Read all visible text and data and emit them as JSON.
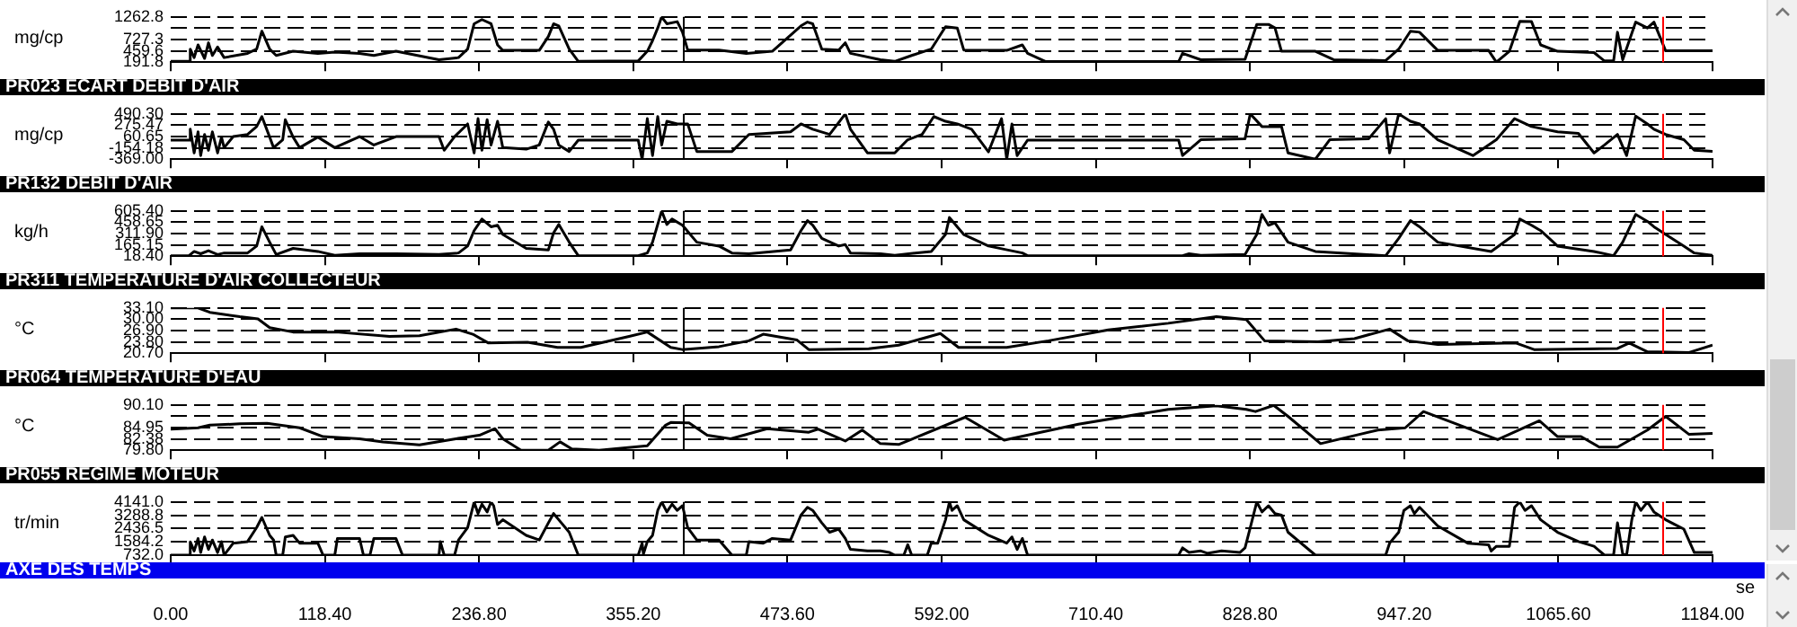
{
  "chart_data": [
    {
      "type": "line",
      "ylabel": "mg/cp",
      "color": "#000000",
      "marker": "none",
      "grid": "y",
      "tick_labels": "y",
      "xlim": [
        0,
        1184
      ],
      "xticks": [
        {
          "value": 0,
          "label": null
        },
        {
          "value": 118.4,
          "label": null
        },
        {
          "value": 236.8,
          "label": null
        },
        {
          "value": 355.2,
          "label": null
        },
        {
          "value": 473.6,
          "label": null
        },
        {
          "value": 592,
          "label": null
        },
        {
          "value": 710.4,
          "label": null
        },
        {
          "value": 828.8,
          "label": null
        },
        {
          "value": 947.2,
          "label": null
        },
        {
          "value": 1065.6,
          "label": null
        },
        {
          "value": 1184,
          "label": null
        }
      ],
      "ylim": [
        191.8,
        1262.8
      ],
      "yticks": [
        191.8,
        459.6,
        727.3,
        {
          "value": 995.05,
          "label": null
        },
        1262.8
      ],
      "ref_lines": [
        {
          "axis": "x",
          "value": 393,
          "color": "#000000"
        },
        {
          "axis": "x",
          "value": 1145,
          "color": "#ff0000"
        }
      ],
      "x": [
        0,
        14,
        15,
        18,
        21,
        26,
        29,
        32,
        36,
        41,
        59,
        66,
        70,
        76,
        81,
        94,
        113,
        126,
        145,
        156,
        173,
        206,
        221,
        228,
        233,
        239,
        246,
        251,
        255,
        283,
        290,
        294,
        298,
        306,
        313,
        359,
        366,
        370,
        374,
        377,
        381,
        389,
        393,
        397,
        421,
        442,
        462,
        484,
        489,
        493,
        500,
        513,
        518,
        522,
        545,
        556,
        569,
        584,
        595,
        604,
        609,
        642,
        654,
        658,
        672,
        774,
        777,
        791,
        825,
        834,
        843,
        848,
        853,
        879,
        893,
        933,
        943,
        952,
        959,
        973,
        1012,
        1018,
        1028,
        1036,
        1045,
        1052,
        1065,
        1093,
        1101,
        1108,
        1111,
        1115,
        1125,
        1134,
        1139,
        1148,
        1184
      ],
      "values": [
        210,
        210,
        500,
        300,
        600,
        280,
        650,
        350,
        550,
        300,
        400,
        500,
        925,
        500,
        350,
        450,
        400,
        430,
        400,
        350,
        450,
        250,
        300,
        500,
        1100,
        1200,
        1100,
        600,
        470,
        470,
        800,
        1100,
        1050,
        500,
        210,
        220,
        450,
        700,
        1000,
        1262,
        1100,
        1150,
        900,
        480,
        480,
        400,
        450,
        1050,
        1140,
        1100,
        500,
        480,
        650,
        400,
        250,
        210,
        350,
        500,
        1030,
        1000,
        480,
        470,
        600,
        400,
        205,
        205,
        400,
        250,
        260,
        1085,
        1085,
        1000,
        450,
        450,
        250,
        230,
        500,
        925,
        900,
        470,
        470,
        192,
        450,
        1160,
        1150,
        600,
        450,
        420,
        220,
        220,
        900,
        250,
        1140,
        1000,
        1140,
        460,
        460
      ]
    },
    {
      "type": "line",
      "title": "PR023  ECART DEBIT D'AIR",
      "ylabel": "mg/cp",
      "color": "#000000",
      "marker": "none",
      "grid": "y",
      "tick_labels": "y",
      "xlim": [
        0,
        1184
      ],
      "xticks": [
        {
          "value": 0,
          "label": null
        },
        {
          "value": 118.4,
          "label": null
        },
        {
          "value": 236.8,
          "label": null
        },
        {
          "value": 355.2,
          "label": null
        },
        {
          "value": 473.6,
          "label": null
        },
        {
          "value": 592,
          "label": null
        },
        {
          "value": 710.4,
          "label": null
        },
        {
          "value": 828.8,
          "label": null
        },
        {
          "value": 947.2,
          "label": null
        },
        {
          "value": 1065.6,
          "label": null
        },
        {
          "value": 1184,
          "label": null
        }
      ],
      "ylim": [
        -369,
        490.3
      ],
      "yticks": [
        {
          "value": -369,
          "label": "-369.00"
        },
        -154.18,
        60.65,
        275.47,
        {
          "value": 490.3,
          "label": "490.30"
        }
      ],
      "ref_lines": [
        {
          "axis": "x",
          "value": 393,
          "color": "#000000"
        },
        {
          "axis": "x",
          "value": 1145,
          "color": "#ff0000"
        }
      ],
      "x": [
        0,
        14,
        15,
        18,
        21,
        23,
        26,
        29,
        32,
        36,
        39,
        41,
        48,
        59,
        66,
        70,
        76,
        79,
        86,
        88,
        94,
        99,
        113,
        126,
        145,
        156,
        173,
        206,
        210,
        218,
        228,
        233,
        236,
        239,
        243,
        246,
        251,
        255,
        273,
        283,
        290,
        294,
        298,
        306,
        313,
        359,
        362,
        366,
        370,
        374,
        377,
        381,
        389,
        397,
        404,
        431,
        444,
        476,
        484,
        493,
        506,
        518,
        522,
        535,
        556,
        566,
        577,
        586,
        595,
        604,
        615,
        628,
        638,
        642,
        646,
        650,
        658,
        774,
        777,
        791,
        825,
        829,
        838,
        853,
        858,
        879,
        890,
        920,
        933,
        936,
        943,
        952,
        959,
        973,
        1000,
        1018,
        1032,
        1045,
        1065,
        1081,
        1093,
        1101,
        1111,
        1118,
        1125,
        1134,
        1139,
        1148,
        1162,
        1170,
        1184
      ],
      "values": [
        -8,
        -8,
        200,
        -250,
        150,
        -300,
        100,
        -200,
        150,
        -250,
        50,
        -150,
        60,
        100,
        250,
        439,
        50,
        -150,
        0,
        380,
        50,
        -150,
        50,
        -150,
        60,
        -100,
        60,
        60,
        -200,
        60,
        300,
        -250,
        400,
        -200,
        380,
        -100,
        350,
        -150,
        -180,
        -100,
        336,
        200,
        -100,
        -223,
        -8,
        -8,
        -369,
        400,
        -300,
        440,
        -100,
        350,
        300,
        300,
        -223,
        -223,
        100,
        150,
        300,
        200,
        100,
        490,
        200,
        -250,
        -250,
        0,
        100,
        440,
        350,
        300,
        200,
        -230,
        400,
        -369,
        300,
        -300,
        -8,
        -8,
        -300,
        0,
        20,
        490,
        250,
        250,
        -250,
        -369,
        0,
        20,
        400,
        -250,
        490,
        350,
        300,
        0,
        -300,
        0,
        400,
        250,
        150,
        120,
        -250,
        -100,
        100,
        -300,
        450,
        300,
        200,
        100,
        0,
        -200,
        -220
      ]
    },
    {
      "type": "line",
      "title": "PR132  DEBIT D'AIR",
      "ylabel": "kg/h",
      "color": "#000000",
      "marker": "none",
      "grid": "y",
      "tick_labels": "y",
      "xlim": [
        0,
        1184
      ],
      "xticks": [
        {
          "value": 0,
          "label": null
        },
        {
          "value": 118.4,
          "label": null
        },
        {
          "value": 236.8,
          "label": null
        },
        {
          "value": 355.2,
          "label": null
        },
        {
          "value": 473.6,
          "label": null
        },
        {
          "value": 592,
          "label": null
        },
        {
          "value": 710.4,
          "label": null
        },
        {
          "value": 828.8,
          "label": null
        },
        {
          "value": 947.2,
          "label": null
        },
        {
          "value": 1065.6,
          "label": null
        },
        {
          "value": 1184,
          "label": null
        }
      ],
      "ylim": [
        18.4,
        605.4
      ],
      "yticks": [
        {
          "value": 18.4,
          "label": "18.40"
        },
        165.15,
        {
          "value": 311.9,
          "label": "311.90"
        },
        458.65,
        {
          "value": 605.4,
          "label": "605.40"
        }
      ],
      "ref_lines": [
        {
          "axis": "x",
          "value": 393,
          "color": "#000000"
        },
        {
          "axis": "x",
          "value": 1145,
          "color": "#ff0000"
        }
      ],
      "x": [
        0,
        14,
        18,
        23,
        29,
        36,
        41,
        59,
        66,
        70,
        76,
        81,
        94,
        113,
        126,
        145,
        173,
        206,
        221,
        228,
        233,
        239,
        246,
        251,
        255,
        273,
        290,
        294,
        298,
        306,
        313,
        359,
        366,
        370,
        377,
        381,
        385,
        393,
        404,
        421,
        431,
        444,
        476,
        484,
        489,
        493,
        500,
        513,
        518,
        522,
        545,
        556,
        584,
        595,
        598,
        604,
        609,
        628,
        654,
        658,
        777,
        782,
        791,
        825,
        834,
        838,
        843,
        848,
        858,
        879,
        933,
        943,
        952,
        959,
        973,
        1014,
        1032,
        1036,
        1045,
        1052,
        1065,
        1093,
        1108,
        1115,
        1122,
        1125,
        1134,
        1139,
        1148,
        1162,
        1170,
        1184
      ],
      "values": [
        25,
        25,
        80,
        50,
        90,
        40,
        60,
        60,
        150,
        400,
        200,
        40,
        120,
        80,
        30,
        50,
        50,
        40,
        60,
        150,
        350,
        500,
        400,
        420,
        300,
        120,
        100,
        320,
        430,
        200,
        25,
        25,
        60,
        200,
        605,
        430,
        500,
        420,
        200,
        150,
        60,
        50,
        100,
        350,
        480,
        420,
        250,
        150,
        170,
        60,
        50,
        30,
        80,
        300,
        520,
        400,
        300,
        150,
        60,
        25,
        25,
        50,
        30,
        40,
        300,
        560,
        420,
        450,
        200,
        80,
        25,
        250,
        480,
        400,
        200,
        80,
        300,
        500,
        420,
        350,
        150,
        80,
        25,
        200,
        450,
        560,
        470,
        400,
        300,
        150,
        60,
        30
      ]
    },
    {
      "type": "line",
      "title": "PR311  TEMPERATURE D'AIR COLLECTEUR",
      "ylabel": "°C",
      "color": "#000000",
      "marker": "none",
      "grid": "y",
      "tick_labels": "y",
      "xlim": [
        0,
        1184
      ],
      "xticks": [
        {
          "value": 0,
          "label": null
        },
        {
          "value": 118.4,
          "label": null
        },
        {
          "value": 236.8,
          "label": null
        },
        {
          "value": 355.2,
          "label": null
        },
        {
          "value": 473.6,
          "label": null
        },
        {
          "value": 592,
          "label": null
        },
        {
          "value": 710.4,
          "label": null
        },
        {
          "value": 828.8,
          "label": null
        },
        {
          "value": 947.2,
          "label": null
        },
        {
          "value": 1065.6,
          "label": null
        },
        {
          "value": 1184,
          "label": null
        }
      ],
      "ylim": [
        20.7,
        33.1
      ],
      "yticks": [
        {
          "value": 20.7,
          "label": "20.70"
        },
        {
          "value": 23.8,
          "label": "23.80"
        },
        {
          "value": 26.9,
          "label": "26.90"
        },
        {
          "value": 30,
          "label": "30.00"
        },
        {
          "value": 33.1,
          "label": "33.10"
        }
      ],
      "ref_lines": [
        {
          "axis": "x",
          "value": 393,
          "color": "#000000"
        },
        {
          "axis": "x",
          "value": 1145,
          "color": "#ff0000"
        }
      ],
      "x": [
        0,
        21,
        30,
        53,
        67,
        76,
        94,
        127,
        168,
        191,
        219,
        232,
        244,
        274,
        297,
        315,
        352,
        366,
        384,
        393,
        421,
        444,
        455,
        481,
        490,
        536,
        559,
        591,
        605,
        642,
        674,
        720,
        766,
        803,
        826,
        840,
        881,
        909,
        936,
        950,
        973,
        1033,
        1047,
        1111,
        1120,
        1134,
        1166,
        1184
      ],
      "values": [
        33.1,
        33.1,
        31.9,
        30.7,
        30.1,
        27.7,
        26.5,
        26.5,
        25.3,
        25.5,
        27.3,
        25.9,
        23.5,
        23.7,
        22.3,
        22.3,
        25.3,
        26.5,
        22.3,
        21.7,
        22.5,
        24.1,
        25.9,
        24.3,
        21.7,
        21.9,
        22.9,
        26.1,
        22.3,
        22.3,
        24.1,
        27.1,
        28.9,
        30.7,
        29.9,
        24.1,
        23.8,
        24.7,
        27.3,
        24.1,
        23.1,
        23.5,
        21.7,
        22.0,
        23.5,
        21.1,
        20.9,
        22.9
      ]
    },
    {
      "type": "line",
      "title": "PR064  TEMPERATURE D'EAU",
      "ylabel": "°C",
      "color": "#000000",
      "marker": "none",
      "grid": "y",
      "tick_labels": "y",
      "xlim": [
        0,
        1184
      ],
      "xticks": [
        {
          "value": 0,
          "label": null
        },
        {
          "value": 118.4,
          "label": null
        },
        {
          "value": 236.8,
          "label": null
        },
        {
          "value": 355.2,
          "label": null
        },
        {
          "value": 473.6,
          "label": null
        },
        {
          "value": 592,
          "label": null
        },
        {
          "value": 710.4,
          "label": null
        },
        {
          "value": 828.8,
          "label": null
        },
        {
          "value": 947.2,
          "label": null
        },
        {
          "value": 1065.6,
          "label": null
        },
        {
          "value": 1184,
          "label": null
        }
      ],
      "ylim": [
        79.8,
        90.1
      ],
      "yticks": [
        {
          "value": 79.8,
          "label": "79.80"
        },
        82.38,
        84.95,
        {
          "value": 87.525,
          "label": null
        },
        {
          "value": 90.1,
          "label": "90.10"
        }
      ],
      "ref_lines": [
        {
          "axis": "x",
          "value": 393,
          "color": "#000000"
        },
        {
          "axis": "x",
          "value": 1145,
          "color": "#ff0000"
        }
      ],
      "x": [
        0,
        21,
        30,
        53,
        74,
        99,
        117,
        145,
        163,
        191,
        219,
        237,
        249,
        255,
        269,
        290,
        299,
        308,
        329,
        366,
        380,
        384,
        398,
        412,
        430,
        458,
        490,
        497,
        518,
        531,
        545,
        559,
        610,
        640,
        697,
        766,
        803,
        826,
        833,
        847,
        858,
        883,
        927,
        948,
        962,
        1019,
        1051,
        1065,
        1083,
        1097,
        1111,
        1134,
        1148,
        1166,
        1184
      ],
      "values": [
        84.6,
        84.9,
        85.5,
        85.8,
        85.9,
        84.9,
        82.9,
        82.4,
        81.7,
        81.0,
        82.4,
        83.2,
        84.7,
        82.4,
        79.8,
        79.8,
        81.7,
        80.1,
        79.8,
        80.8,
        85.5,
        86.1,
        86.0,
        83.2,
        82.4,
        84.7,
        83.9,
        84.6,
        81.9,
        84.4,
        81.3,
        81.1,
        87.3,
        82.1,
        85.7,
        89.1,
        89.9,
        89.1,
        88.6,
        90.0,
        87.5,
        81.3,
        84.4,
        84.9,
        88.6,
        82.2,
        86.5,
        82.9,
        82.9,
        80.5,
        80.5,
        84.4,
        87.5,
        83.4,
        83.6
      ]
    },
    {
      "type": "line",
      "title": "PR055  REGIME MOTEUR",
      "ylabel": "tr/min",
      "xlabel": "AXE DES TEMPS",
      "annotations": [
        "se"
      ],
      "color": "#000000",
      "marker": "none",
      "grid": "y",
      "xlim": [
        0,
        1184
      ],
      "xticks": [
        {
          "value": 0,
          "label": "0.00"
        },
        {
          "value": 118.4,
          "label": "118.40"
        },
        {
          "value": 236.8,
          "label": "236.80"
        },
        {
          "value": 355.2,
          "label": "355.20"
        },
        {
          "value": 473.6,
          "label": "473.60"
        },
        {
          "value": 592,
          "label": "592.00"
        },
        {
          "value": 710.4,
          "label": "710.40"
        },
        {
          "value": 828.8,
          "label": "828.80"
        },
        {
          "value": 947.2,
          "label": "947.20"
        },
        {
          "value": 1065.6,
          "label": "1065.60"
        },
        {
          "value": 1184,
          "label": "1184.00"
        }
      ],
      "ylim": [
        732,
        4141
      ],
      "yticks": [
        {
          "value": 732,
          "label": "732.0"
        },
        1584.2,
        2436.5,
        3288.8,
        {
          "value": 4141,
          "label": "4141.0"
        }
      ],
      "ref_lines": [
        {
          "axis": "x",
          "value": 393,
          "color": "#000000"
        },
        {
          "axis": "x",
          "value": 1145,
          "color": "#ff0000"
        }
      ],
      "x": [
        0,
        14,
        15,
        18,
        21,
        23,
        26,
        29,
        32,
        36,
        39,
        41,
        48,
        59,
        66,
        70,
        76,
        79,
        81,
        86,
        88,
        94,
        99,
        113,
        117,
        126,
        128,
        145,
        148,
        153,
        156,
        173,
        178,
        206,
        207,
        210,
        218,
        221,
        228,
        233,
        236,
        239,
        243,
        246,
        248,
        251,
        255,
        273,
        283,
        290,
        294,
        298,
        306,
        313,
        359,
        362,
        363,
        366,
        370,
        374,
        377,
        381,
        385,
        389,
        393,
        397,
        404,
        421,
        431,
        442,
        444,
        455,
        462,
        476,
        484,
        489,
        493,
        500,
        506,
        513,
        518,
        522,
        535,
        545,
        552,
        556,
        563,
        566,
        569,
        581,
        584,
        589,
        595,
        598,
        600,
        604,
        609,
        628,
        642,
        646,
        650,
        654,
        658,
        774,
        777,
        782,
        791,
        796,
        807,
        821,
        825,
        829,
        834,
        838,
        843,
        848,
        853,
        858,
        879,
        933,
        936,
        943,
        947,
        952,
        955,
        959,
        973,
        996,
        1012,
        1014,
        1018,
        1028,
        1032,
        1036,
        1040,
        1045,
        1052,
        1065,
        1081,
        1093,
        1101,
        1108,
        1111,
        1115,
        1118,
        1122,
        1125,
        1129,
        1134,
        1139,
        1148,
        1155,
        1162,
        1170,
        1184
      ],
      "values": [
        732,
        732,
        1584,
        1000,
        1800,
        900,
        1900,
        1100,
        1700,
        900,
        1600,
        732,
        1500,
        1600,
        2500,
        3150,
        2000,
        1700,
        732,
        732,
        1900,
        2000,
        1500,
        1500,
        732,
        732,
        1800,
        1800,
        732,
        732,
        1800,
        1800,
        732,
        732,
        1600,
        732,
        732,
        1700,
        2500,
        4141,
        3400,
        4000,
        3500,
        4141,
        3900,
        2700,
        3000,
        2000,
        1700,
        2800,
        3400,
        3000,
        2200,
        732,
        732,
        1500,
        800,
        1600,
        2000,
        3600,
        4141,
        3500,
        4000,
        3600,
        3900,
        2500,
        1700,
        1700,
        732,
        732,
        1600,
        1500,
        1800,
        1700,
        3300,
        3800,
        3600,
        2800,
        2200,
        2400,
        1800,
        1100,
        1000,
        1000,
        900,
        732,
        732,
        1400,
        732,
        732,
        1500,
        1500,
        3000,
        4141,
        3600,
        3900,
        3000,
        2000,
        1500,
        1900,
        1100,
        1800,
        732,
        732,
        1200,
        900,
        1000,
        850,
        1000,
        900,
        1200,
        2500,
        4141,
        3500,
        3900,
        3400,
        3300,
        2200,
        732,
        732,
        1500,
        2200,
        3600,
        3900,
        3400,
        3800,
        2600,
        1500,
        1400,
        1000,
        1300,
        1300,
        3800,
        4141,
        3600,
        3900,
        3000,
        2200,
        1600,
        1300,
        732,
        732,
        2800,
        800,
        732,
        3000,
        4141,
        3600,
        4141,
        3500,
        3000,
        2700,
        2400,
        900,
        900
      ]
    }
  ]
}
